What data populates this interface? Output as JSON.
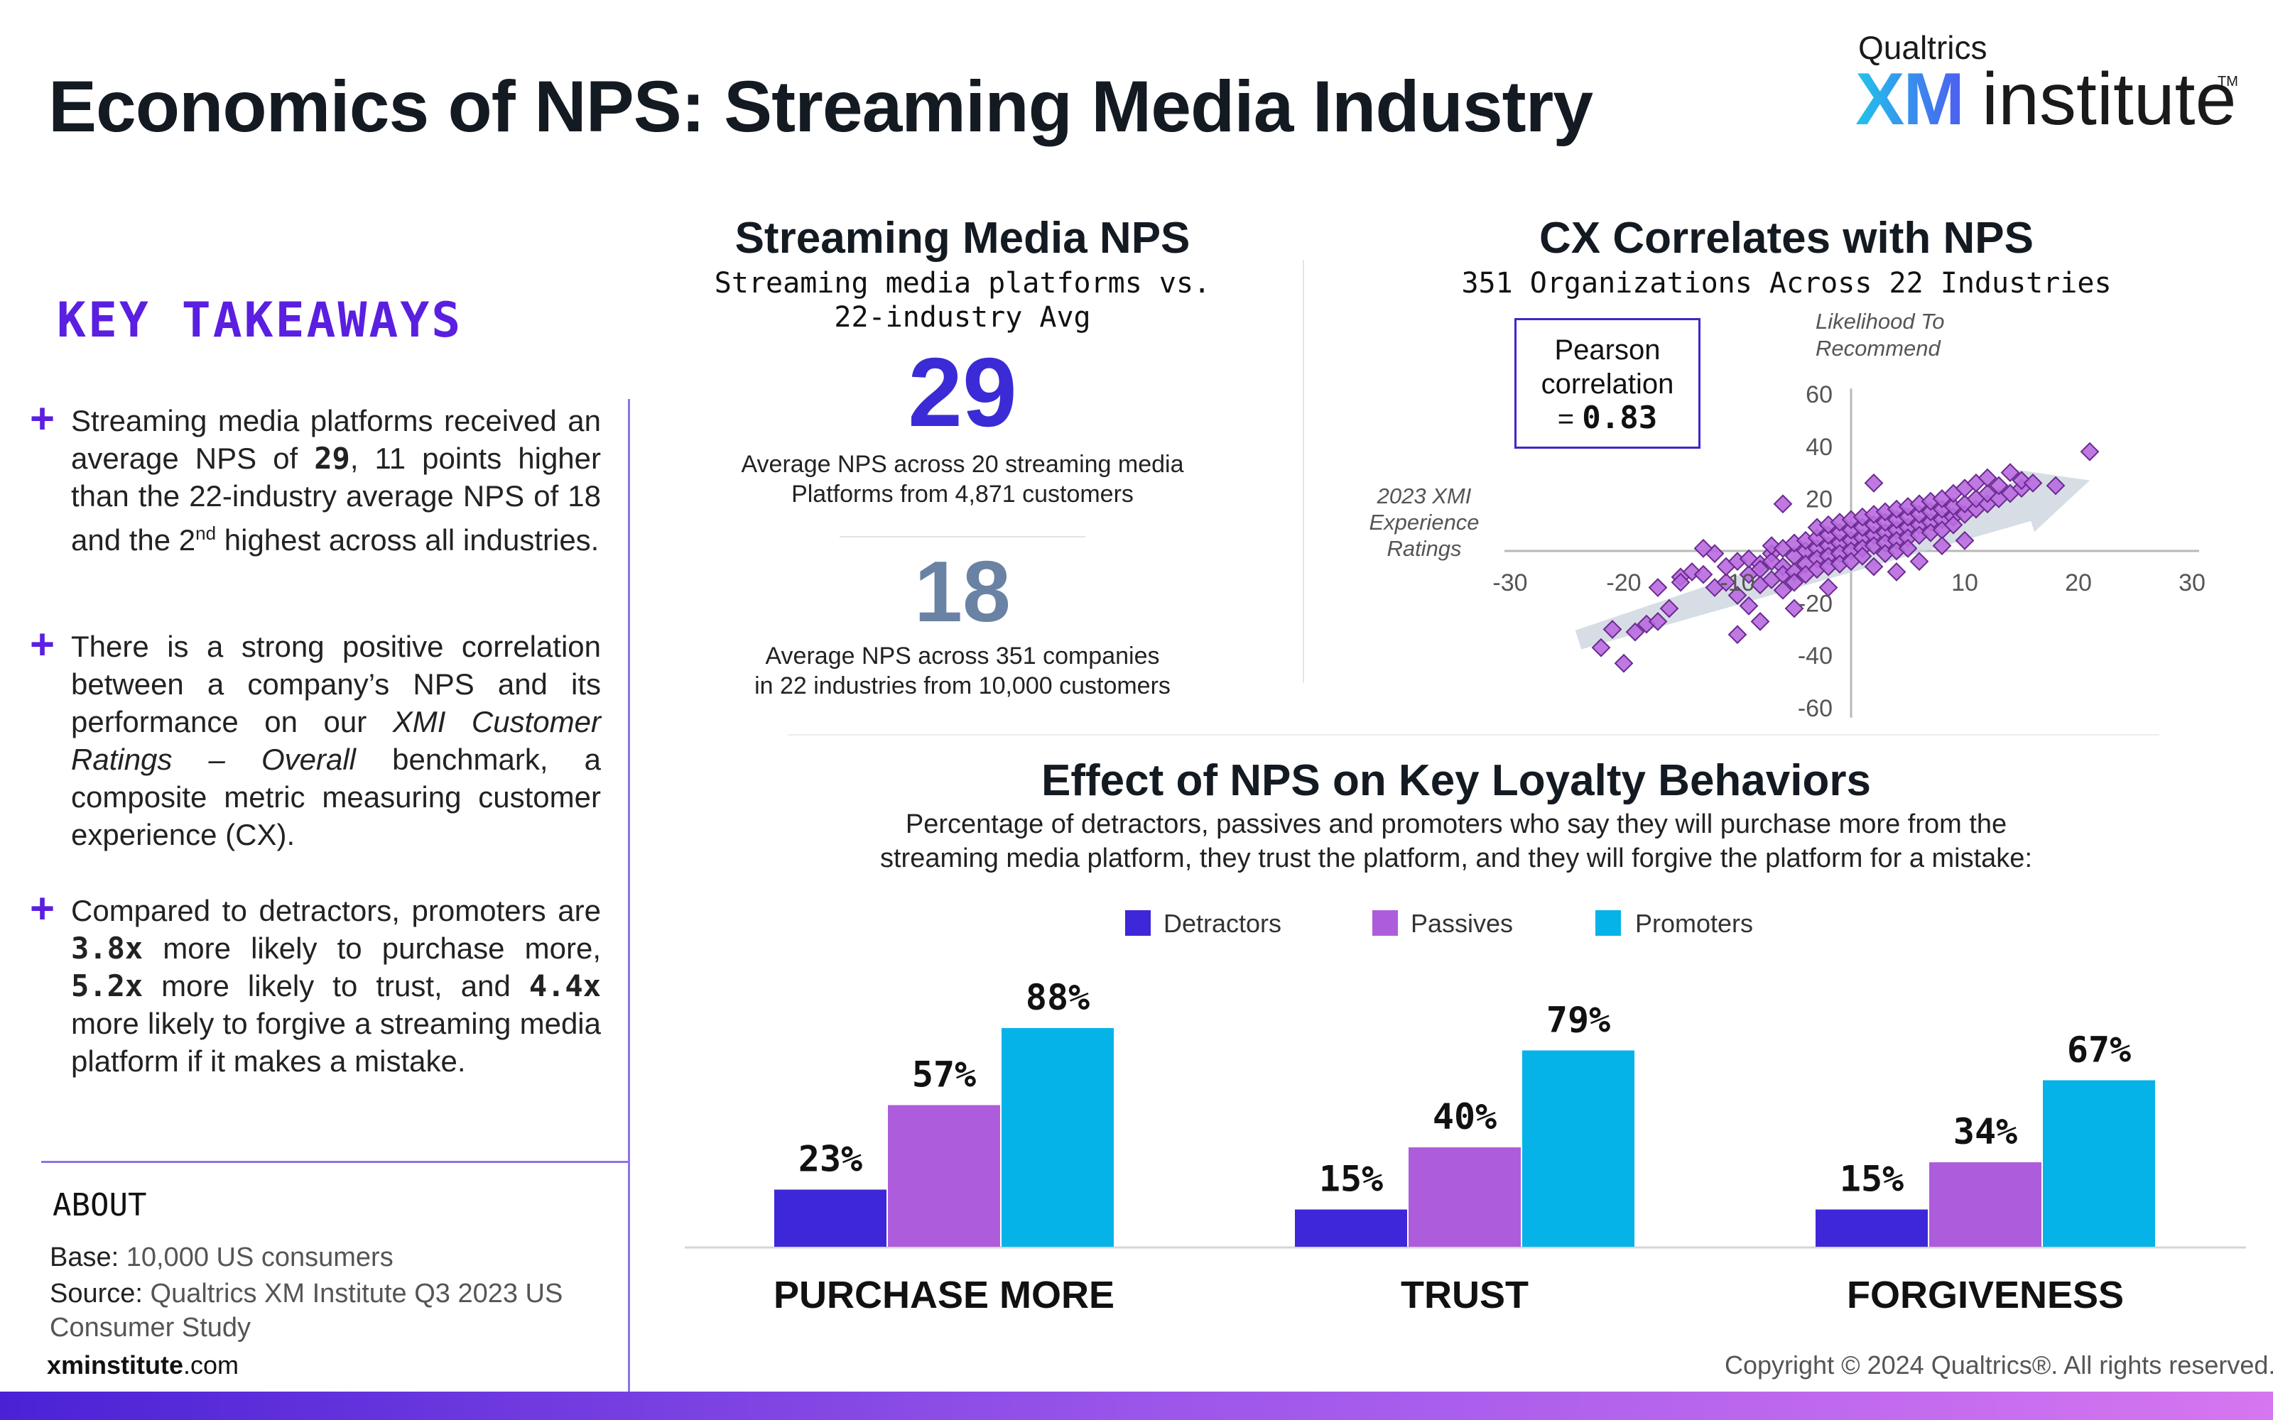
{
  "header": {
    "title": "Economics of NPS: Streaming Media Industry",
    "logo_brand": "Qualtrics",
    "logo_xm": "XM",
    "logo_institute": "institute",
    "logo_tm": "TM"
  },
  "takeaways": {
    "heading": "KEY TAKEAWAYS",
    "bullets": [
      {
        "pre": "Streaming media platforms received an average NPS of ",
        "bold": "29",
        "mid": ", 11 points higher than the 22-industry average NPS of 18 and the 2",
        "sup": "nd",
        "post": " highest across all industries."
      },
      {
        "pre": "There is a strong positive correlation between a company’s NPS and its performance on our ",
        "italic": "XMI Customer Ratings – Overall",
        "post": " benchmark, a composite metric measuring customer experience (CX)."
      },
      {
        "pre": "Compared to detractors, promoters are ",
        "b1": "3.8x",
        "t1": " more likely to purchase more, ",
        "b2": "5.2x",
        "t2": " more likely to trust, and ",
        "b3": "4.4x",
        "t3": " more likely to forgive a streaming media platform if it makes a mistake."
      }
    ]
  },
  "about": {
    "heading": "ABOUT",
    "base_label": "Base:",
    "base_value": " 10,000 US consumers",
    "source_label": "Source:",
    "source_value": " Qualtrics XM Institute Q3 2023 US Consumer Study",
    "site_bold": "xminstitute",
    "site_rest": ".com"
  },
  "nps_panel": {
    "title": "Streaming Media NPS",
    "subtitle_line1": "Streaming media platforms vs.",
    "subtitle_line2": "22-industry Avg",
    "value_main": "29",
    "desc_main_1": "Average NPS across 20 streaming media",
    "desc_main_2": "Platforms from 4,871 customers",
    "value_avg": "18",
    "desc_avg_1": "Average NPS across 351 companies",
    "desc_avg_2": "in 22 industries from 10,000 customers",
    "colors": {
      "main": "#3b2bd6",
      "avg": "#6a82a3"
    }
  },
  "copyright": "Copyright © 2024 Qualtrics®. All rights reserved.",
  "chart_data": [
    {
      "type": "scatter",
      "title": "CX Correlates with NPS",
      "subtitle": "351 Organizations Across 22 Industries",
      "xlabel": "2023 XMI Experience Ratings",
      "ylabel": "Likelihood To Recommend",
      "xlim": [
        -30,
        30
      ],
      "ylim": [
        -60,
        60
      ],
      "x_ticks": [
        "-30",
        "-20",
        "-10",
        "10",
        "20",
        "30"
      ],
      "y_ticks": [
        "60",
        "40",
        "20",
        "-20",
        "-40",
        "-60"
      ],
      "pearson_label_1": "Pearson",
      "pearson_label_2": "correlation",
      "pearson_eq": "= ",
      "pearson_value": "0.83",
      "trend": {
        "from": [
          -24,
          -34
        ],
        "to": [
          21,
          27
        ]
      },
      "colors": {
        "marker": "#b96adf",
        "marker_edge": "#6a2a8f",
        "trend": "#c9d1dc"
      },
      "points": [
        [
          -22,
          -37
        ],
        [
          -21,
          -30
        ],
        [
          -20,
          -43
        ],
        [
          -19,
          -31
        ],
        [
          -18,
          -28
        ],
        [
          -17,
          -27
        ],
        [
          -16,
          -22
        ],
        [
          -15,
          -10
        ],
        [
          -14,
          -8
        ],
        [
          -13,
          -9
        ],
        [
          -12,
          -1
        ],
        [
          -12,
          -14
        ],
        [
          -11,
          -12
        ],
        [
          -11,
          -6
        ],
        [
          -10,
          -17
        ],
        [
          -10,
          -4
        ],
        [
          -9,
          -9
        ],
        [
          -9,
          -3
        ],
        [
          -9,
          -21
        ],
        [
          -8,
          -5
        ],
        [
          -8,
          -7
        ],
        [
          -8,
          -13
        ],
        [
          -7,
          -1
        ],
        [
          -7,
          -11
        ],
        [
          -7,
          -4
        ],
        [
          -7,
          2
        ],
        [
          -6,
          -6
        ],
        [
          -6,
          -9
        ],
        [
          -6,
          -15
        ],
        [
          -6,
          1
        ],
        [
          -5,
          -2
        ],
        [
          -5,
          -8
        ],
        [
          -5,
          3
        ],
        [
          -5,
          -12
        ],
        [
          -4,
          0
        ],
        [
          -4,
          -5
        ],
        [
          -4,
          -9
        ],
        [
          -4,
          4
        ],
        [
          -3,
          1
        ],
        [
          -3,
          -3
        ],
        [
          -3,
          -7
        ],
        [
          -3,
          5
        ],
        [
          -3,
          9
        ],
        [
          -2,
          2
        ],
        [
          -2,
          -2
        ],
        [
          -2,
          -6
        ],
        [
          -2,
          6
        ],
        [
          -2,
          10
        ],
        [
          -1,
          3
        ],
        [
          -1,
          -1
        ],
        [
          -1,
          -5
        ],
        [
          -1,
          7
        ],
        [
          -1,
          11
        ],
        [
          0,
          4
        ],
        [
          0,
          0
        ],
        [
          0,
          -4
        ],
        [
          0,
          8
        ],
        [
          0,
          12
        ],
        [
          1,
          5
        ],
        [
          1,
          1
        ],
        [
          1,
          -2
        ],
        [
          1,
          9
        ],
        [
          1,
          13
        ],
        [
          2,
          6
        ],
        [
          2,
          2
        ],
        [
          2,
          10
        ],
        [
          2,
          -6
        ],
        [
          2,
          14
        ],
        [
          3,
          7
        ],
        [
          3,
          3
        ],
        [
          3,
          11
        ],
        [
          3,
          -1
        ],
        [
          3,
          15
        ],
        [
          4,
          8
        ],
        [
          4,
          4
        ],
        [
          4,
          12
        ],
        [
          4,
          16
        ],
        [
          4,
          0
        ],
        [
          5,
          9
        ],
        [
          5,
          5
        ],
        [
          5,
          13
        ],
        [
          5,
          17
        ],
        [
          5,
          1
        ],
        [
          6,
          10
        ],
        [
          6,
          6
        ],
        [
          6,
          14
        ],
        [
          6,
          18
        ],
        [
          7,
          11
        ],
        [
          7,
          7
        ],
        [
          7,
          15
        ],
        [
          7,
          19
        ],
        [
          8,
          12
        ],
        [
          8,
          8
        ],
        [
          8,
          16
        ],
        [
          8,
          20
        ],
        [
          9,
          13
        ],
        [
          9,
          17
        ],
        [
          9,
          10
        ],
        [
          9,
          22
        ],
        [
          10,
          14
        ],
        [
          10,
          18
        ],
        [
          10,
          24
        ],
        [
          11,
          16
        ],
        [
          11,
          20
        ],
        [
          11,
          26
        ],
        [
          12,
          18
        ],
        [
          12,
          22
        ],
        [
          12,
          28
        ],
        [
          13,
          20
        ],
        [
          13,
          25
        ],
        [
          14,
          22
        ],
        [
          14,
          30
        ],
        [
          15,
          24
        ],
        [
          15,
          27
        ],
        [
          16,
          26
        ],
        [
          18,
          25
        ],
        [
          21,
          38
        ],
        [
          -8,
          -27
        ],
        [
          -5,
          -22
        ],
        [
          -15,
          -12
        ],
        [
          -13,
          1
        ],
        [
          -17,
          -14
        ],
        [
          4,
          -8
        ],
        [
          6,
          -4
        ],
        [
          -10,
          -32
        ],
        [
          2,
          26
        ],
        [
          -6,
          18
        ],
        [
          8,
          2
        ],
        [
          10,
          4
        ],
        [
          -2,
          -14
        ]
      ]
    },
    {
      "type": "bar",
      "title": "Effect of NPS on Key Loyalty Behaviors",
      "subtitle_line1": "Percentage of detractors, passives and promoters who say they will purchase more from the",
      "subtitle_line2": "streaming media platform, they trust the platform, and they will forgive the platform for a mistake:",
      "categories": [
        "PURCHASE MORE",
        "TRUST",
        "FORGIVENESS"
      ],
      "series": [
        {
          "name": "Detractors",
          "color": "#3d27d9",
          "values": [
            23,
            15,
            15
          ],
          "labels": [
            "23%",
            "15%",
            "15%"
          ]
        },
        {
          "name": "Passives",
          "color": "#ad5ddb",
          "values": [
            57,
            40,
            34
          ],
          "labels": [
            "57%",
            "40%",
            "34%"
          ]
        },
        {
          "name": "Promoters",
          "color": "#05b3e8",
          "values": [
            88,
            79,
            67
          ],
          "labels": [
            "88%",
            "79%",
            "67%"
          ]
        }
      ],
      "ylim": [
        0,
        100
      ],
      "legend": "top-center"
    }
  ]
}
